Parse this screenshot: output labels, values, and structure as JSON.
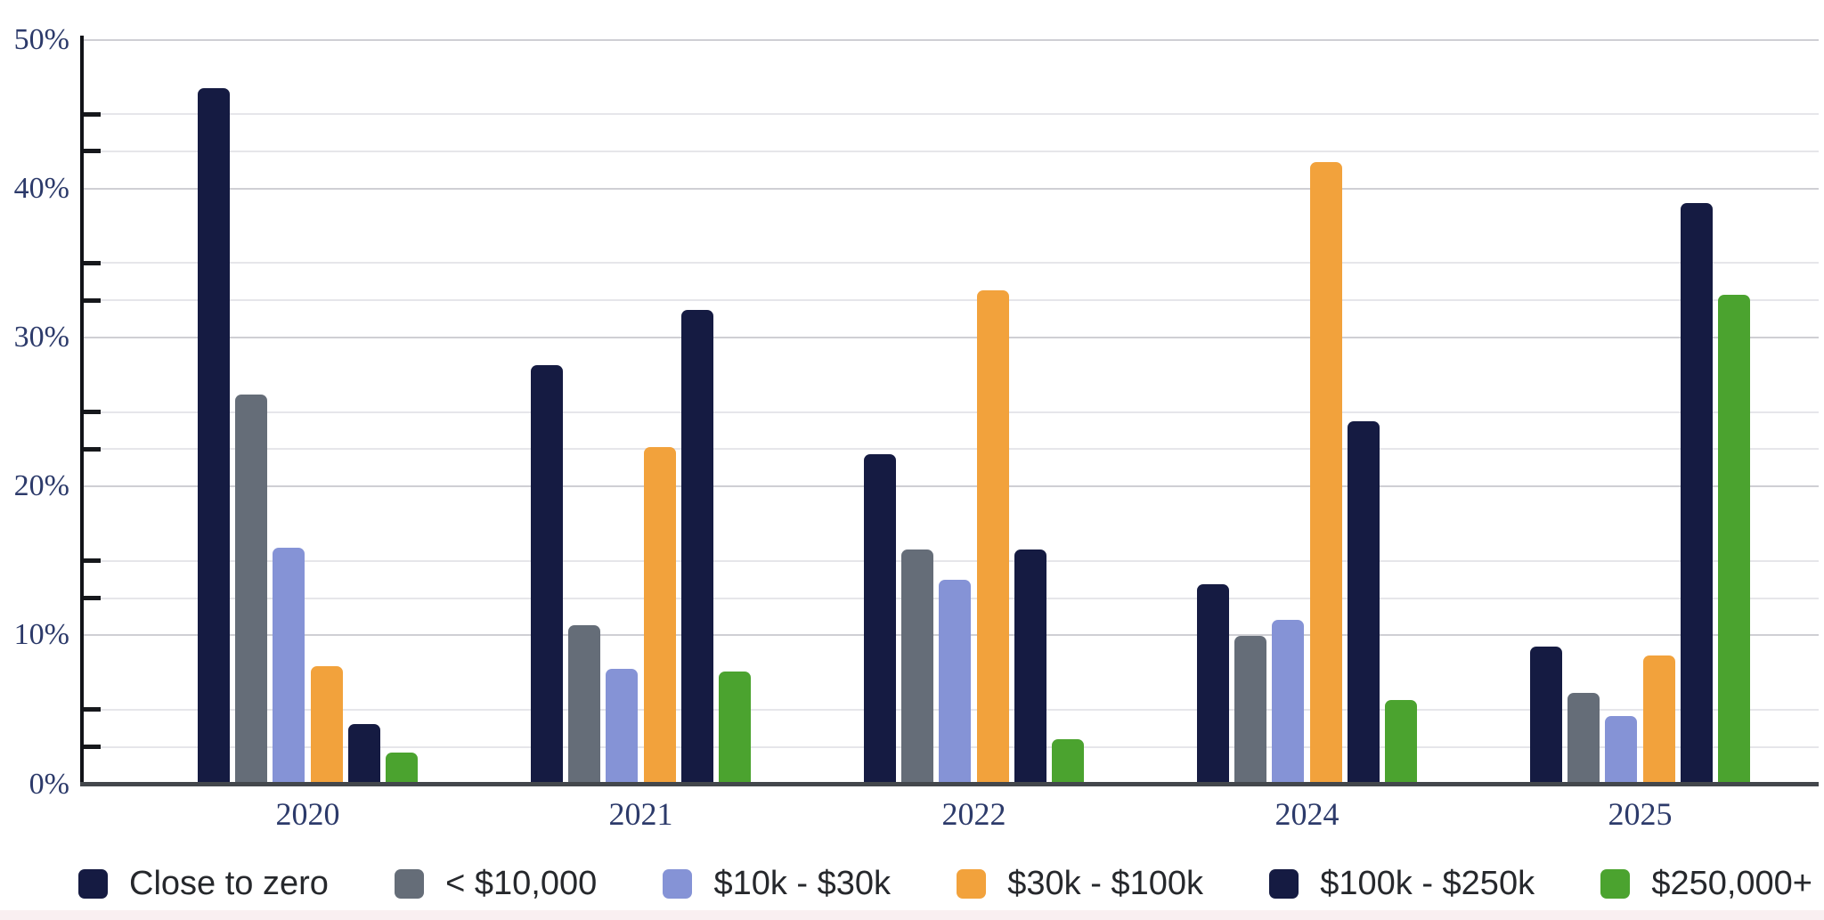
{
  "chart_data": {
    "type": "bar",
    "title": "",
    "categories": [
      "2020",
      "2021",
      "2022",
      "2024",
      "2025"
    ],
    "series": [
      {
        "name": "Close to zero",
        "color": "#151b42",
        "values": [
          46.6,
          28.0,
          22.0,
          13.3,
          9.1
        ]
      },
      {
        "name": "< $10,000",
        "color": "#656d78",
        "values": [
          26.0,
          10.5,
          15.6,
          9.8,
          6.0
        ]
      },
      {
        "name": "$10k - $30k",
        "color": "#8593d6",
        "values": [
          15.7,
          7.6,
          13.6,
          10.9,
          4.4
        ]
      },
      {
        "name": "$30k - $100k",
        "color": "#f2a23c",
        "values": [
          7.8,
          22.5,
          33.0,
          41.6,
          8.5
        ]
      },
      {
        "name": "$100k - $250k",
        "color": "#151b42",
        "values": [
          3.9,
          31.7,
          15.6,
          24.2,
          38.9
        ]
      },
      {
        "name": "$250,000+",
        "color": "#4ba32f",
        "values": [
          2.0,
          7.4,
          2.9,
          5.5,
          32.7
        ]
      }
    ],
    "y_axis": {
      "min": 0,
      "max": 50,
      "major_step": 10,
      "minor_offsets": [
        2.5,
        5
      ],
      "tick_labels": [
        "0%",
        "10%",
        "20%",
        "30%",
        "40%",
        "50%"
      ],
      "unit": "%"
    },
    "grid": true,
    "legend_position": "bottom",
    "colors": {
      "axis_label": "#2c3a6a",
      "legend_text": "#26282c",
      "major_grid": "#cfcfd4",
      "minor_grid": "#e6e6ea",
      "baseline": "#43474c"
    }
  }
}
